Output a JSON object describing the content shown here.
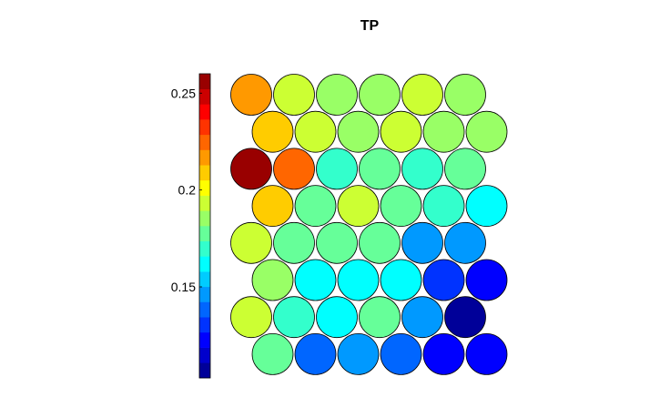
{
  "chart_data": {
    "type": "heatmap",
    "layout": "hexagonal",
    "title": "TP",
    "colorbar": {
      "colormap": "jet",
      "range": [
        0.103,
        0.26
      ],
      "ticks": [
        0.15,
        0.2,
        0.25
      ],
      "tick_labels": [
        "0.15",
        "0.2",
        "0.25"
      ],
      "steps": 20
    },
    "grid": {
      "rows": 8,
      "cols": 6
    },
    "values": [
      [
        0.22,
        0.197,
        0.183,
        0.183,
        0.193,
        0.183
      ],
      [
        0.208,
        0.193,
        0.185,
        0.19,
        0.182,
        0.183
      ],
      [
        0.257,
        0.223,
        0.168,
        0.18,
        0.172,
        0.175
      ],
      [
        0.208,
        0.18,
        0.19,
        0.18,
        0.168,
        0.16
      ],
      [
        0.192,
        0.178,
        0.178,
        0.178,
        0.145,
        0.145
      ],
      [
        0.182,
        0.16,
        0.163,
        0.16,
        0.13,
        0.12
      ],
      [
        0.193,
        0.168,
        0.163,
        0.175,
        0.147,
        0.105
      ],
      [
        0.18,
        0.14,
        0.15,
        0.14,
        0.123,
        0.125
      ]
    ]
  }
}
